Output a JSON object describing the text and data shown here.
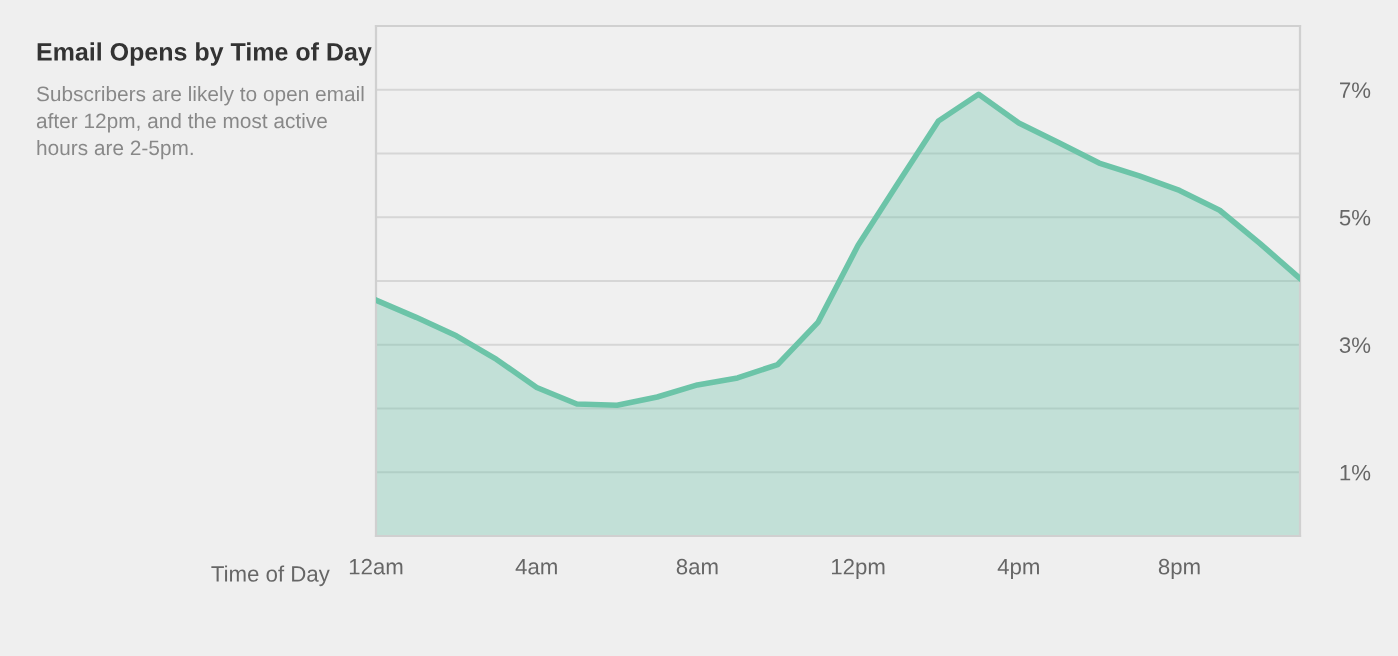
{
  "chart_data": {
    "type": "area",
    "title": "Email Opens by Time of Day",
    "subtitle": "Subscribers are likely to open email\nafter 12pm, and the most active\nhours are 2-5pm.",
    "xlabel": "Time of Day",
    "categories": [
      "12am",
      null,
      null,
      null,
      "4am",
      null,
      null,
      null,
      "8am",
      null,
      null,
      null,
      "12pm",
      null,
      null,
      null,
      "4pm",
      null,
      null,
      null,
      "8pm",
      null,
      null,
      null
    ],
    "series": [
      {
        "color": "#6cc4a8",
        "values": [
          3.7,
          3.43,
          3.14,
          2.77,
          2.33,
          2.07,
          2.05,
          2.18,
          2.37,
          2.48,
          2.69,
          3.35,
          4.56,
          5.54,
          6.51,
          6.93,
          6.48,
          6.17,
          5.85,
          5.65,
          5.42,
          5.11,
          4.59,
          4.04
        ]
      }
    ],
    "ylim": [
      0,
      8
    ],
    "yticks": [
      {
        "value": 1,
        "label": "1%"
      },
      {
        "value": 2,
        "label": null
      },
      {
        "value": 3,
        "label": "3%"
      },
      {
        "value": 4,
        "label": null
      },
      {
        "value": 5,
        "label": "5%"
      },
      {
        "value": 6,
        "label": null
      },
      {
        "value": 7,
        "label": "7%"
      }
    ],
    "grid": "y"
  }
}
